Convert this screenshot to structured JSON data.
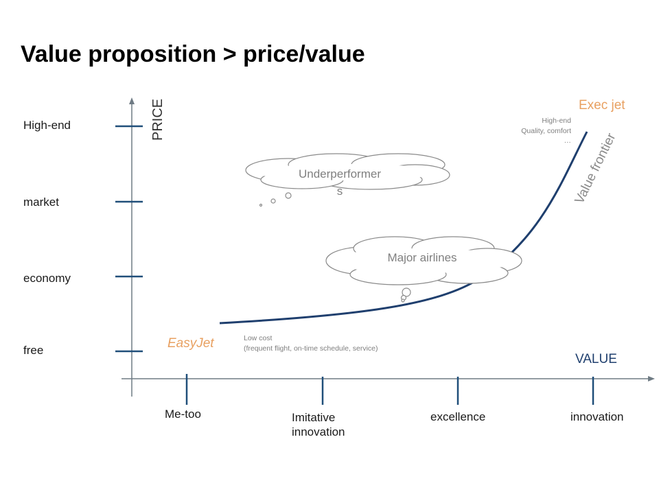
{
  "title": "Value proposition > price/value",
  "y_axis": {
    "label": "PRICE",
    "levels": [
      "High-end",
      "market",
      "economy",
      "free"
    ]
  },
  "x_axis": {
    "label": "VALUE",
    "levels": [
      "Me-too",
      "Imitative\ninnovation",
      "excellence",
      "innovation"
    ]
  },
  "annotations": {
    "easyjet": "EasyJet",
    "easyjet_note": "Low cost\n(frequent flight, on-time schedule,  service)",
    "execjet": "Exec jet",
    "execjet_note": "High-end\nQuality, comfort\n…",
    "frontier": "Value frontier",
    "underperformers": "Underperformer\ns",
    "major_airlines": "Major airlines"
  }
}
